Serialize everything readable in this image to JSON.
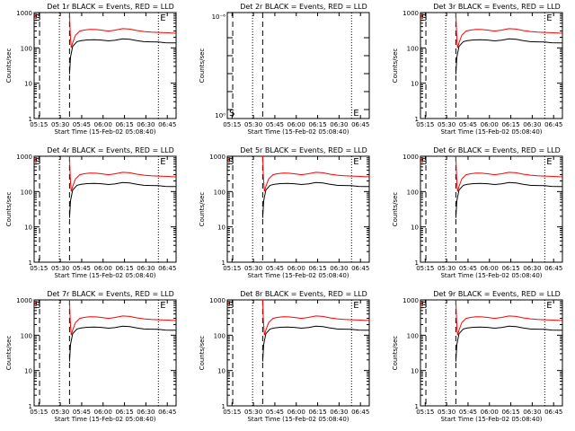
{
  "chart_data": {
    "type": "line",
    "scale": "log",
    "ylim": [
      1,
      1000
    ],
    "ylim_panel2": [
      1e-06,
      1e-05
    ],
    "ylabel": "Counts/sec",
    "xlabel": "Start Time (15-Feb-02 05:08:40)",
    "x_ticks": [
      "05:15",
      "05:30",
      "05:45",
      "06:00",
      "06:15",
      "06:30",
      "06:45"
    ],
    "y_ticks": [
      "1",
      "10",
      "100",
      "1000"
    ],
    "y_ticks_panel2": [
      "10⁰",
      "10⁻⁶"
    ],
    "y_tick_top_panel2": "10⁻⁶",
    "series_colors": {
      "events": "#000000",
      "lld": "#ff0000"
    },
    "marker_labels": {
      "start": "S",
      "end": "E"
    },
    "panels": [
      {
        "title": "Det 1r BLACK = Events, RED = LLD",
        "has_data": true
      },
      {
        "title": "Det 2r BLACK = Events, RED = LLD",
        "has_data": false
      },
      {
        "title": "Det 3r BLACK = Events, RED = LLD",
        "has_data": true
      },
      {
        "title": "Det 4r BLACK = Events, RED = LLD",
        "has_data": true
      },
      {
        "title": "Det 5r BLACK = Events, RED = LLD",
        "has_data": true
      },
      {
        "title": "Det 6r BLACK = Events, RED = LLD",
        "has_data": true
      },
      {
        "title": "Det 7r BLACK = Events, RED = LLD",
        "has_data": true
      },
      {
        "title": "Det 8r BLACK = Events, RED = LLD",
        "has_data": true
      },
      {
        "title": "Det 9r BLACK = Events, RED = LLD",
        "has_data": true
      }
    ],
    "dashed_lines_min": [
      6.8,
      27.8
    ],
    "dotted_lines_min": [
      20.7,
      90.1
    ],
    "events_series": {
      "x_min": [
        27.8,
        28.5,
        30,
        33,
        36,
        40,
        45,
        50,
        55,
        60,
        65,
        70,
        75,
        80,
        85,
        90,
        95,
        100,
        103
      ],
      "y": [
        18,
        55,
        110,
        150,
        160,
        168,
        170,
        167,
        158,
        165,
        180,
        175,
        160,
        150,
        148,
        147,
        140,
        138,
        138
      ]
    },
    "lld_series": {
      "x_min": [
        0,
        1.5,
        3,
        5,
        27.8,
        28.3,
        29,
        30,
        32,
        35,
        38,
        42,
        46,
        50,
        55,
        60,
        65,
        70,
        75,
        80,
        85,
        90,
        95,
        100,
        103
      ],
      "y": [
        230,
        400,
        700,
        950,
        1000,
        250,
        100,
        140,
        230,
        300,
        320,
        335,
        330,
        320,
        300,
        320,
        350,
        340,
        310,
        290,
        280,
        275,
        270,
        262,
        262
      ]
    }
  }
}
